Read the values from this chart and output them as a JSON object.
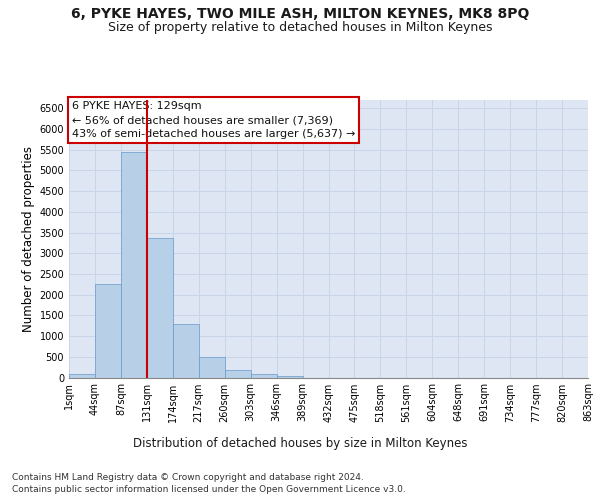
{
  "title": "6, PYKE HAYES, TWO MILE ASH, MILTON KEYNES, MK8 8PQ",
  "subtitle": "Size of property relative to detached houses in Milton Keynes",
  "xlabel": "Distribution of detached houses by size in Milton Keynes",
  "ylabel": "Number of detached properties",
  "footer_line1": "Contains HM Land Registry data © Crown copyright and database right 2024.",
  "footer_line2": "Contains public sector information licensed under the Open Government Licence v3.0.",
  "annotation_line1": "6 PYKE HAYES: 129sqm",
  "annotation_line2": "← 56% of detached houses are smaller (7,369)",
  "annotation_line3": "43% of semi-detached houses are larger (5,637) →",
  "bar_values": [
    75,
    2250,
    5450,
    3380,
    1300,
    490,
    185,
    75,
    25,
    0,
    0,
    0,
    0,
    0,
    0,
    0,
    0,
    0,
    0,
    0
  ],
  "categories": [
    "1sqm",
    "44sqm",
    "87sqm",
    "131sqm",
    "174sqm",
    "217sqm",
    "260sqm",
    "303sqm",
    "346sqm",
    "389sqm",
    "432sqm",
    "475sqm",
    "518sqm",
    "561sqm",
    "604sqm",
    "648sqm",
    "691sqm",
    "734sqm",
    "777sqm",
    "820sqm",
    "863sqm"
  ],
  "bar_color": "#b8cfe8",
  "bar_edge_color": "#6699cc",
  "vline_color": "#cc0000",
  "ylim": [
    0,
    6700
  ],
  "yticks": [
    0,
    500,
    1000,
    1500,
    2000,
    2500,
    3000,
    3500,
    4000,
    4500,
    5000,
    5500,
    6000,
    6500
  ],
  "grid_color": "#c8d4e8",
  "bg_color": "#dde6f2",
  "annotation_box_color": "#cc0000",
  "title_fontsize": 10,
  "subtitle_fontsize": 9,
  "axis_label_fontsize": 8.5,
  "tick_fontsize": 7,
  "footer_fontsize": 6.5,
  "annotation_fontsize": 8
}
